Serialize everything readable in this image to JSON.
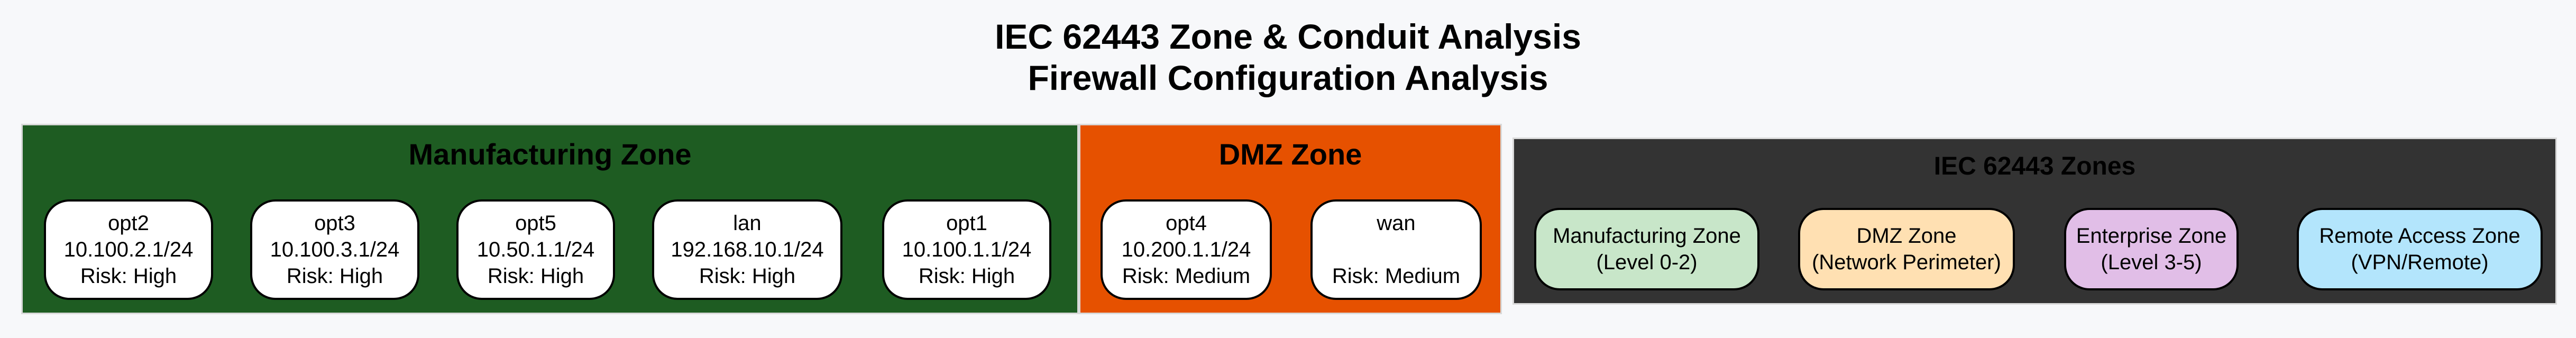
{
  "title": {
    "line1": "IEC 62443 Zone & Conduit Analysis",
    "line2": "Firewall Configuration Analysis"
  },
  "zones": [
    {
      "label": "Manufacturing Zone",
      "color": "#1e5c22",
      "nodes": [
        {
          "name": "opt2",
          "subnet": "10.100.2.1/24",
          "risk": "Risk: High"
        },
        {
          "name": "opt3",
          "subnet": "10.100.3.1/24",
          "risk": "Risk: High"
        },
        {
          "name": "opt5",
          "subnet": "10.50.1.1/24",
          "risk": "Risk: High"
        },
        {
          "name": "lan",
          "subnet": "192.168.10.1/24",
          "risk": "Risk: High"
        },
        {
          "name": "opt1",
          "subnet": "10.100.1.1/24",
          "risk": "Risk: High"
        }
      ]
    },
    {
      "label": "DMZ Zone",
      "color": "#e65100",
      "nodes": [
        {
          "name": "opt4",
          "subnet": "10.200.1.1/24",
          "risk": "Risk: Medium"
        },
        {
          "name": "wan",
          "subnet": "",
          "risk": "Risk: Medium"
        }
      ]
    }
  ],
  "legend": {
    "label": "IEC 62443 Zones",
    "color": "#333333",
    "items": [
      {
        "line1": "Manufacturing Zone",
        "line2": "(Level 0-2)",
        "color": "#c8e6c9"
      },
      {
        "line1": "DMZ Zone",
        "line2": "(Network Perimeter)",
        "color": "#ffe0b2"
      },
      {
        "line1": "Enterprise Zone",
        "line2": "(Level 3-5)",
        "color": "#e1bee7"
      },
      {
        "line1": "Remote Access Zone",
        "line2": "(VPN/Remote)",
        "color": "#b3e5fc"
      }
    ]
  }
}
